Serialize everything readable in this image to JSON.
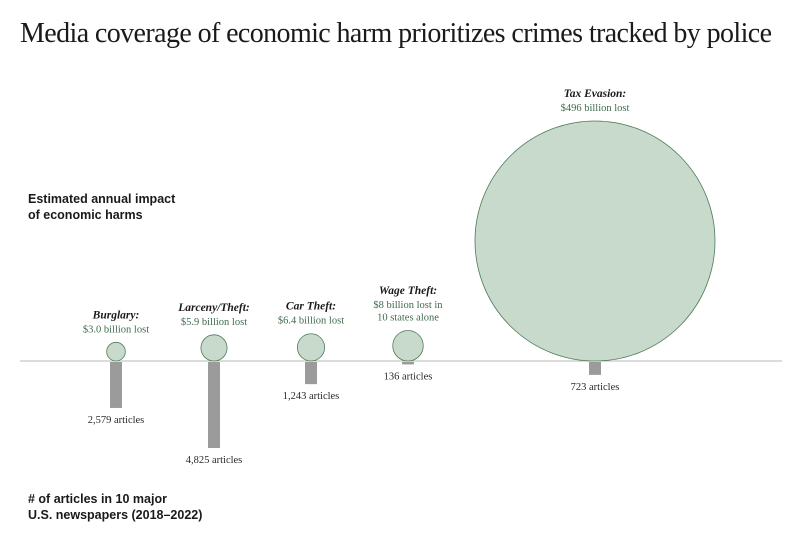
{
  "title": "Media coverage of economic harm prioritizes crimes tracked by police",
  "chart_data": {
    "type": "bubble-and-bar",
    "title": "Media coverage of economic harm prioritizes crimes tracked by police",
    "top_label": "Estimated annual impact\nof economic harms",
    "bottom_label": "# of articles in 10 major\nU.S. newspapers (2018–2022)",
    "categories": [
      "Burglary:",
      "Larceny/Theft:",
      "Car Theft:",
      "Wage Theft:",
      "Tax Evasion:"
    ],
    "loss_billions": [
      3.0,
      5.9,
      6.4,
      8,
      496
    ],
    "loss_labels": [
      [
        "$3.0 billion lost"
      ],
      [
        "$5.9 billion lost"
      ],
      [
        "$6.4 billion lost"
      ],
      [
        "$8 billion lost in",
        "10 states alone"
      ],
      [
        "$496 billion lost"
      ]
    ],
    "articles": [
      2579,
      4825,
      1243,
      136,
      723
    ],
    "article_labels": [
      "2,579 articles",
      "4,825 articles",
      "1,243 articles",
      "136 articles",
      "723 articles"
    ],
    "colors": {
      "circle_fill": "#c7dacb",
      "circle_stroke": "#4f7a5a",
      "bar_fill": "#9b9b9b",
      "axis_line": "#b8b8b8",
      "loss_text": "#3e6b4c"
    }
  }
}
